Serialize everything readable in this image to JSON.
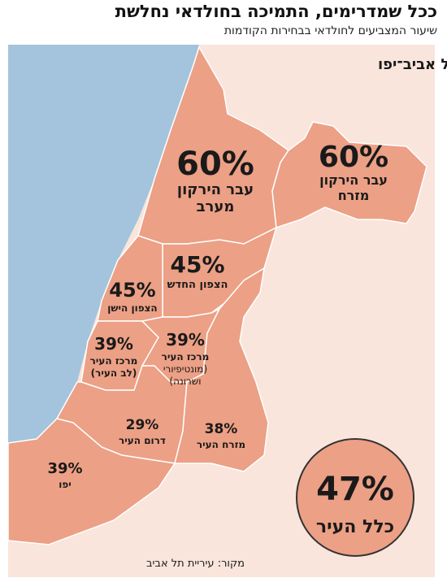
{
  "header": {
    "title": "ככל שמדרימים, התמיכה בחולדאי נחלשת",
    "subtitle": "שיעור המצביעים לחולדאי בבחירות הקודמות"
  },
  "map": {
    "city": "תל אביב־יפו",
    "regions": [
      {
        "value": "60%",
        "name_lines": [
          "עבר הירקון",
          "מערב"
        ]
      },
      {
        "value": "60%",
        "name_lines": [
          "עבר הירקון",
          "מזרח"
        ]
      },
      {
        "value": "45%",
        "name_lines": [
          "הצפון החדש"
        ]
      },
      {
        "value": "45%",
        "name_lines": [
          "הצפון הישן"
        ]
      },
      {
        "value": "39%",
        "name_lines": [
          "מרכז העיר",
          "(לב העיר)"
        ]
      },
      {
        "value": "39%",
        "name_lines": [
          "מרכז העיר",
          "(מונטיפיורי",
          "ושרונה)"
        ]
      },
      {
        "value": "29%",
        "name_lines": [
          "דרום העיר"
        ]
      },
      {
        "value": "38%",
        "name_lines": [
          "מזרח העיר"
        ]
      },
      {
        "value": "39%",
        "name_lines": [
          "יפו"
        ]
      }
    ],
    "total": {
      "value": "47%",
      "label": "כלל העיר"
    }
  },
  "source": "מקור: עיריית תל אביב"
}
